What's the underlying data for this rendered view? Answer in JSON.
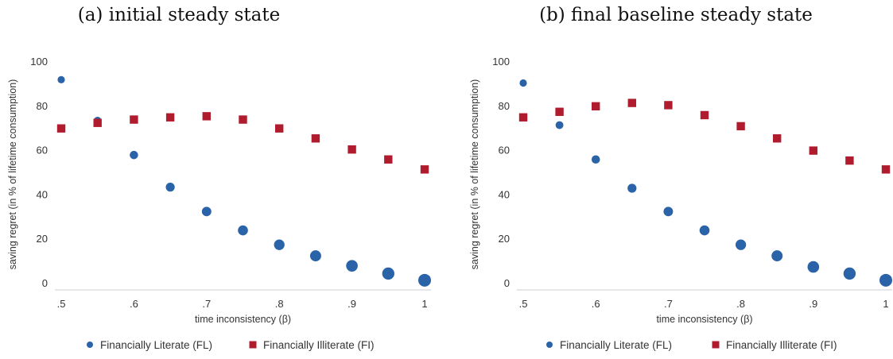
{
  "panels": [
    {
      "title": "(a) initial steady state"
    },
    {
      "title": "(b) final baseline steady state"
    }
  ],
  "chart_data": [
    {
      "type": "scatter",
      "title": "(a) initial steady state",
      "xlabel": "time inconsistency (β)",
      "ylabel": "saving regret (in % of lifetime consumption)",
      "x_ticks": [
        ".5",
        ".6",
        ".7",
        ".8",
        ".9",
        "1"
      ],
      "y_ticks": [
        "0",
        "20",
        "40",
        "60",
        "80",
        "100"
      ],
      "xlim": [
        0.5,
        1.0
      ],
      "ylim": [
        0,
        100
      ],
      "x": [
        0.5,
        0.55,
        0.6,
        0.65,
        0.7,
        0.75,
        0.8,
        0.85,
        0.9,
        0.95,
        1.0
      ],
      "series": [
        {
          "name": "Financially Literate (FL)",
          "marker": "circle",
          "color": "#2a63a7",
          "values": [
            92,
            73.5,
            58,
            43.5,
            32.5,
            24,
            17.5,
            12.5,
            8,
            4.5,
            1.5
          ]
        },
        {
          "name": "Financially Illiterate (FI)",
          "marker": "square",
          "color": "#b01c2e",
          "values": [
            70,
            72.5,
            74,
            75,
            75.5,
            74,
            70,
            65.5,
            60.5,
            56,
            51.5
          ]
        }
      ],
      "legend_position": "bottom"
    },
    {
      "type": "scatter",
      "title": "(b) final baseline steady state",
      "xlabel": "time inconsistency (β)",
      "ylabel": "saving regret (in % of lifetime consumption)",
      "x_ticks": [
        ".5",
        ".6",
        ".7",
        ".8",
        ".9",
        "1"
      ],
      "y_ticks": [
        "0",
        "20",
        "40",
        "60",
        "80",
        "100"
      ],
      "xlim": [
        0.5,
        1.0
      ],
      "ylim": [
        0,
        100
      ],
      "x": [
        0.5,
        0.55,
        0.6,
        0.65,
        0.7,
        0.75,
        0.8,
        0.85,
        0.9,
        0.95,
        1.0
      ],
      "series": [
        {
          "name": "Financially Literate (FL)",
          "marker": "circle",
          "color": "#2a63a7",
          "values": [
            90.5,
            71.5,
            56,
            43,
            32.5,
            24,
            17.5,
            12.5,
            7.5,
            4.5,
            1.5
          ]
        },
        {
          "name": "Financially Illiterate (FI)",
          "marker": "square",
          "color": "#b01c2e",
          "values": [
            75,
            77.5,
            80,
            81.5,
            80.5,
            76,
            71,
            65.5,
            60,
            55.5,
            51.5
          ]
        }
      ],
      "legend_position": "bottom"
    }
  ]
}
